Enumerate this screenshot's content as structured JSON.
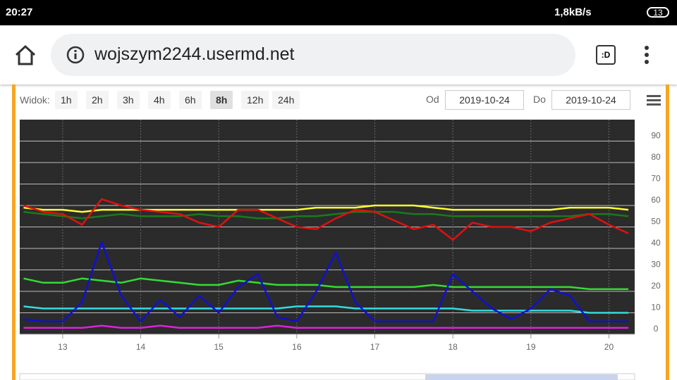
{
  "status_bar": {
    "time": "20:27",
    "speed": "1,8kB/s",
    "battery": "13"
  },
  "browser": {
    "url": "wojszym2244.usermd.net",
    "tabs": ":D"
  },
  "toolbar": {
    "label": "Widok:",
    "ranges": [
      "1h",
      "2h",
      "3h",
      "4h",
      "6h",
      "8h",
      "12h",
      "24h"
    ],
    "selected": 5,
    "from_label": "Od",
    "from": "2019-10-24",
    "to_label": "Do",
    "to": "2019-10-24"
  },
  "chart_data": {
    "type": "line",
    "grid": true,
    "x": [
      12.5,
      12.75,
      13,
      13.25,
      13.5,
      13.75,
      14,
      14.25,
      14.5,
      14.75,
      15,
      15.25,
      15.5,
      15.75,
      16,
      16.25,
      16.5,
      16.75,
      17,
      17.25,
      17.5,
      17.75,
      18,
      18.25,
      18.5,
      18.75,
      19,
      19.25,
      19.5,
      19.75,
      20,
      20.25
    ],
    "xlim": [
      12.45,
      20.33
    ],
    "xticks": [
      13,
      14,
      15,
      16,
      17,
      18,
      19,
      20
    ],
    "ylim": [
      0,
      100
    ],
    "yticks": [
      0,
      10,
      20,
      30,
      40,
      50,
      60,
      70,
      80,
      90
    ],
    "series": [
      {
        "color": "#ffff33",
        "values": [
          59,
          58,
          58,
          57,
          58,
          58,
          58,
          58,
          58,
          58,
          58,
          58,
          58,
          58,
          58,
          59,
          59,
          59,
          60,
          60,
          60,
          59,
          58,
          58,
          58,
          58,
          58,
          58,
          59,
          59,
          59,
          58
        ]
      },
      {
        "color": "#1a7a1a",
        "values": [
          57,
          56,
          55,
          54,
          55,
          56,
          55,
          55,
          55,
          56,
          55,
          55,
          54,
          54,
          55,
          55,
          56,
          57,
          57,
          57,
          56,
          56,
          55,
          55,
          55,
          55,
          55,
          55,
          55,
          56,
          56,
          55
        ]
      },
      {
        "color": "#e01010",
        "values": [
          60,
          57,
          56,
          51,
          63,
          60,
          58,
          57,
          56,
          52,
          50,
          58,
          58,
          54,
          50,
          49,
          54,
          58,
          57,
          53,
          49,
          51,
          44,
          52,
          50,
          50,
          48,
          52,
          54,
          56,
          51,
          47
        ]
      },
      {
        "color": "#33dd33",
        "values": [
          26,
          24,
          24,
          26,
          25,
          24,
          26,
          25,
          24,
          23,
          23,
          25,
          24,
          23,
          23,
          23,
          22,
          22,
          22,
          22,
          22,
          23,
          22,
          22,
          22,
          22,
          22,
          22,
          22,
          21,
          21,
          21
        ]
      },
      {
        "color": "#33dddd",
        "values": [
          13,
          12,
          12,
          12,
          12,
          12,
          12,
          12,
          12,
          12,
          12,
          12,
          12,
          12,
          13,
          13,
          13,
          12,
          12,
          12,
          12,
          12,
          12,
          11,
          11,
          11,
          11,
          11,
          11,
          10,
          10,
          10
        ]
      },
      {
        "color": "#1010d0",
        "values": [
          7,
          6,
          6,
          15,
          43,
          18,
          6,
          16,
          8,
          18,
          10,
          22,
          28,
          8,
          6,
          20,
          38,
          15,
          6,
          6,
          6,
          6,
          28,
          20,
          12,
          7,
          12,
          21,
          18,
          6,
          6,
          6
        ]
      },
      {
        "color": "#dd22dd",
        "values": [
          3,
          3,
          3,
          3,
          4,
          3,
          3,
          4,
          3,
          3,
          3,
          3,
          3,
          4,
          3,
          3,
          3,
          3,
          3,
          3,
          3,
          3,
          3,
          3,
          3,
          3,
          3,
          3,
          3,
          3,
          3,
          3
        ]
      }
    ]
  }
}
